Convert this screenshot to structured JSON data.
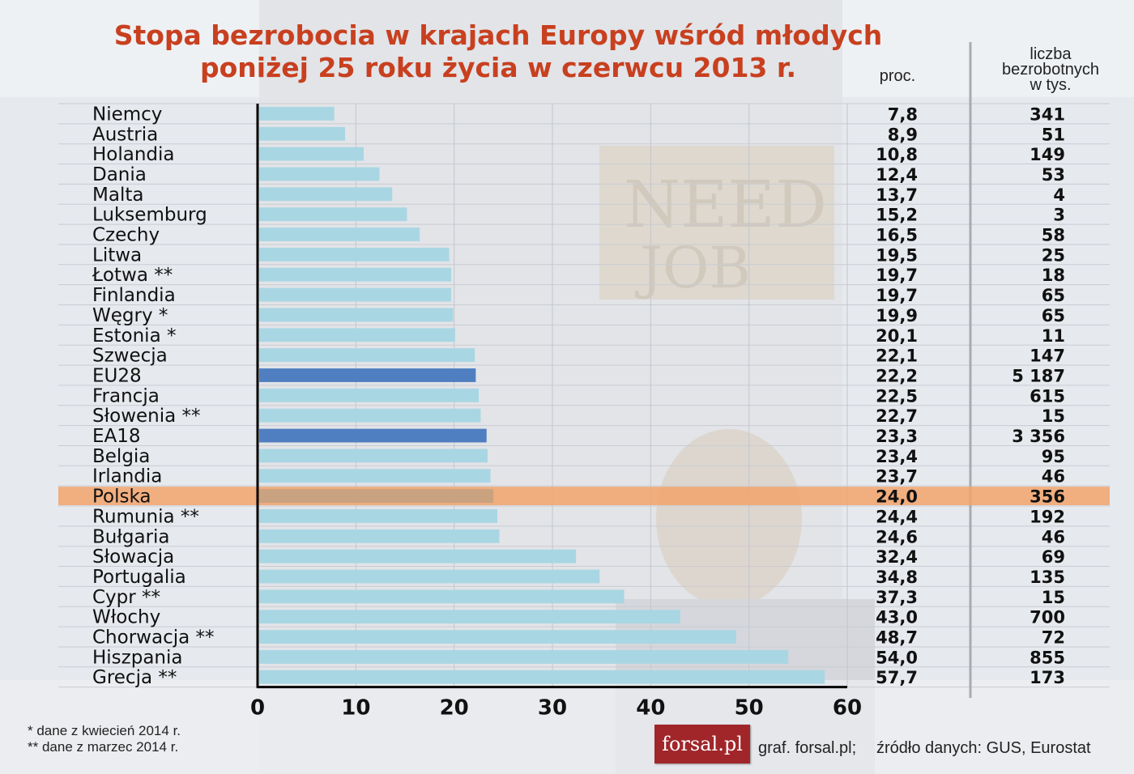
{
  "title_line1": "Stopa bezrobocia w krajach Europy wśród młodych",
  "title_line2": "poniżej 25 roku życia w czerwcu 2013 r.",
  "header_proc": "proc.",
  "header_count": [
    "liczba",
    "bezrobotnych",
    "w tys."
  ],
  "footnote1": "* dane z kwiecień 2014 r.",
  "footnote2": "** dane z marzec 2014 r.",
  "logo_text": "forsal.pl",
  "credit": "graf. forsal.pl;",
  "source": "źródło danych: GUS, Eurostat",
  "colors": {
    "title": "#c8401f",
    "bar": "#a9d6e3",
    "bar_aggregate": "#4f7fc1",
    "highlight_band": "#f2a36b"
  },
  "chart_data": {
    "type": "bar",
    "orientation": "horizontal",
    "xlim": [
      0,
      60
    ],
    "x_ticks": [
      "0",
      "10",
      "20",
      "30",
      "40",
      "50",
      "60"
    ],
    "grid": true,
    "highlight": "Polska",
    "categories": [
      {
        "label": "Niemcy",
        "value": 7.8,
        "value_text": "7,8",
        "count_text": "341",
        "kind": "country"
      },
      {
        "label": "Austria",
        "value": 8.9,
        "value_text": "8,9",
        "count_text": "51",
        "kind": "country"
      },
      {
        "label": "Holandia",
        "value": 10.8,
        "value_text": "10,8",
        "count_text": "149",
        "kind": "country"
      },
      {
        "label": "Dania",
        "value": 12.4,
        "value_text": "12,4",
        "count_text": "53",
        "kind": "country"
      },
      {
        "label": "Malta",
        "value": 13.7,
        "value_text": "13,7",
        "count_text": "4",
        "kind": "country"
      },
      {
        "label": "Luksemburg",
        "value": 15.2,
        "value_text": "15,2",
        "count_text": "3",
        "kind": "country"
      },
      {
        "label": "Czechy",
        "value": 16.5,
        "value_text": "16,5",
        "count_text": "58",
        "kind": "country"
      },
      {
        "label": "Litwa",
        "value": 19.5,
        "value_text": "19,5",
        "count_text": "25",
        "kind": "country"
      },
      {
        "label": "Łotwa **",
        "value": 19.7,
        "value_text": "19,7",
        "count_text": "18",
        "kind": "country"
      },
      {
        "label": "Finlandia",
        "value": 19.7,
        "value_text": "19,7",
        "count_text": "65",
        "kind": "country"
      },
      {
        "label": "Węgry *",
        "value": 19.9,
        "value_text": "19,9",
        "count_text": "65",
        "kind": "country"
      },
      {
        "label": "Estonia *",
        "value": 20.1,
        "value_text": "20,1",
        "count_text": "11",
        "kind": "country"
      },
      {
        "label": "Szwecja",
        "value": 22.1,
        "value_text": "22,1",
        "count_text": "147",
        "kind": "country"
      },
      {
        "label": "EU28",
        "value": 22.2,
        "value_text": "22,2",
        "count_text": "5 187",
        "kind": "aggregate"
      },
      {
        "label": "Francja",
        "value": 22.5,
        "value_text": "22,5",
        "count_text": "615",
        "kind": "country"
      },
      {
        "label": "Słowenia **",
        "value": 22.7,
        "value_text": "22,7",
        "count_text": "15",
        "kind": "country"
      },
      {
        "label": "EA18",
        "value": 23.3,
        "value_text": "23,3",
        "count_text": "3 356",
        "kind": "aggregate"
      },
      {
        "label": "Belgia",
        "value": 23.4,
        "value_text": "23,4",
        "count_text": "95",
        "kind": "country"
      },
      {
        "label": "Irlandia",
        "value": 23.7,
        "value_text": "23,7",
        "count_text": "46",
        "kind": "country"
      },
      {
        "label": "Polska",
        "value": 24.0,
        "value_text": "24,0",
        "count_text": "356",
        "kind": "highlight"
      },
      {
        "label": "Rumunia **",
        "value": 24.4,
        "value_text": "24,4",
        "count_text": "192",
        "kind": "country"
      },
      {
        "label": "Bułgaria",
        "value": 24.6,
        "value_text": "24,6",
        "count_text": "46",
        "kind": "country"
      },
      {
        "label": "Słowacja",
        "value": 32.4,
        "value_text": "32,4",
        "count_text": "69",
        "kind": "country"
      },
      {
        "label": "Portugalia",
        "value": 34.8,
        "value_text": "34,8",
        "count_text": "135",
        "kind": "country"
      },
      {
        "label": "Cypr **",
        "value": 37.3,
        "value_text": "37,3",
        "count_text": "15",
        "kind": "country"
      },
      {
        "label": "Włochy",
        "value": 43.0,
        "value_text": "43,0",
        "count_text": "700",
        "kind": "country"
      },
      {
        "label": "Chorwacja **",
        "value": 48.7,
        "value_text": "48,7",
        "count_text": "72",
        "kind": "country"
      },
      {
        "label": "Hiszpania",
        "value": 54.0,
        "value_text": "54,0",
        "count_text": "855",
        "kind": "country"
      },
      {
        "label": "Grecja **",
        "value": 57.7,
        "value_text": "57,7",
        "count_text": "173",
        "kind": "country"
      }
    ]
  }
}
